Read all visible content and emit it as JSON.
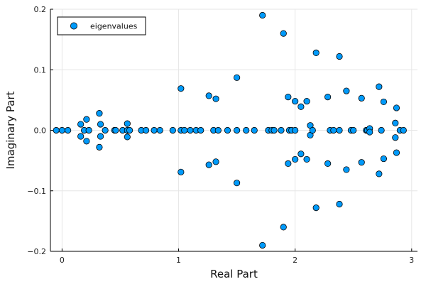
{
  "chart_data": {
    "type": "scatter",
    "xlabel": "Real Part",
    "ylabel": "Imaginary Part",
    "xlim": [
      -0.1,
      3.05
    ],
    "ylim": [
      -0.2,
      0.2
    ],
    "xticks": [
      0,
      1,
      2,
      3
    ],
    "xtick_labels": [
      "0",
      "1",
      "2",
      "3"
    ],
    "yticks": [
      -0.2,
      -0.1,
      0.0,
      0.1,
      0.2
    ],
    "ytick_labels": [
      "−0.2",
      "−0.1",
      "0.0",
      "0.1",
      "0.2"
    ],
    "grid": true,
    "legend_position": "top-left",
    "marker_color": "#009AFA",
    "series": [
      {
        "name": "eigenvalues",
        "points": [
          [
            -0.05,
            0
          ],
          [
            0.0,
            0
          ],
          [
            0.05,
            0
          ],
          [
            0.16,
            0.01
          ],
          [
            0.16,
            -0.01
          ],
          [
            0.19,
            0
          ],
          [
            0.21,
            0.018
          ],
          [
            0.21,
            -0.018
          ],
          [
            0.23,
            0
          ],
          [
            0.32,
            0.028
          ],
          [
            0.32,
            -0.028
          ],
          [
            0.33,
            0.01
          ],
          [
            0.33,
            -0.01
          ],
          [
            0.37,
            0
          ],
          [
            0.45,
            0
          ],
          [
            0.46,
            0
          ],
          [
            0.52,
            0
          ],
          [
            0.56,
            0.011
          ],
          [
            0.56,
            -0.011
          ],
          [
            0.56,
            0
          ],
          [
            0.58,
            0
          ],
          [
            0.68,
            0
          ],
          [
            0.72,
            0
          ],
          [
            0.79,
            0
          ],
          [
            0.84,
            0
          ],
          [
            0.95,
            0
          ],
          [
            1.02,
            0.069
          ],
          [
            1.02,
            -0.069
          ],
          [
            1.02,
            0
          ],
          [
            1.05,
            0
          ],
          [
            1.1,
            0
          ],
          [
            1.15,
            0
          ],
          [
            1.19,
            0
          ],
          [
            1.26,
            0.057
          ],
          [
            1.26,
            -0.057
          ],
          [
            1.3,
            0
          ],
          [
            1.32,
            0.052
          ],
          [
            1.32,
            -0.052
          ],
          [
            1.34,
            0
          ],
          [
            1.42,
            0
          ],
          [
            1.5,
            0.087
          ],
          [
            1.5,
            -0.087
          ],
          [
            1.5,
            0
          ],
          [
            1.58,
            0
          ],
          [
            1.65,
            0
          ],
          [
            1.72,
            0.19
          ],
          [
            1.72,
            -0.19
          ],
          [
            1.77,
            0
          ],
          [
            1.8,
            0
          ],
          [
            1.82,
            0
          ],
          [
            1.88,
            0
          ],
          [
            1.9,
            0.16
          ],
          [
            1.9,
            -0.16
          ],
          [
            1.94,
            0.055
          ],
          [
            1.94,
            -0.055
          ],
          [
            1.95,
            0
          ],
          [
            1.97,
            0
          ],
          [
            2.0,
            0
          ],
          [
            2.0,
            0.048
          ],
          [
            2.0,
            -0.048
          ],
          [
            2.05,
            0.039
          ],
          [
            2.05,
            -0.039
          ],
          [
            2.1,
            0.048
          ],
          [
            2.1,
            -0.048
          ],
          [
            2.13,
            0.008
          ],
          [
            2.13,
            -0.008
          ],
          [
            2.15,
            0
          ],
          [
            2.18,
            0.128
          ],
          [
            2.18,
            -0.128
          ],
          [
            2.28,
            0.055
          ],
          [
            2.28,
            -0.055
          ],
          [
            2.3,
            0
          ],
          [
            2.33,
            0
          ],
          [
            2.38,
            0
          ],
          [
            2.38,
            0.122
          ],
          [
            2.38,
            -0.122
          ],
          [
            2.44,
            0.065
          ],
          [
            2.44,
            -0.065
          ],
          [
            2.48,
            0
          ],
          [
            2.5,
            0
          ],
          [
            2.57,
            0.053
          ],
          [
            2.57,
            -0.053
          ],
          [
            2.61,
            0
          ],
          [
            2.62,
            0
          ],
          [
            2.64,
            0.003
          ],
          [
            2.64,
            -0.003
          ],
          [
            2.72,
            0.072
          ],
          [
            2.72,
            -0.072
          ],
          [
            2.74,
            0
          ],
          [
            2.76,
            0.047
          ],
          [
            2.76,
            -0.047
          ],
          [
            2.86,
            0.012
          ],
          [
            2.86,
            -0.012
          ],
          [
            2.87,
            0.037
          ],
          [
            2.87,
            -0.037
          ],
          [
            2.9,
            0
          ],
          [
            2.93,
            0
          ]
        ]
      }
    ]
  }
}
